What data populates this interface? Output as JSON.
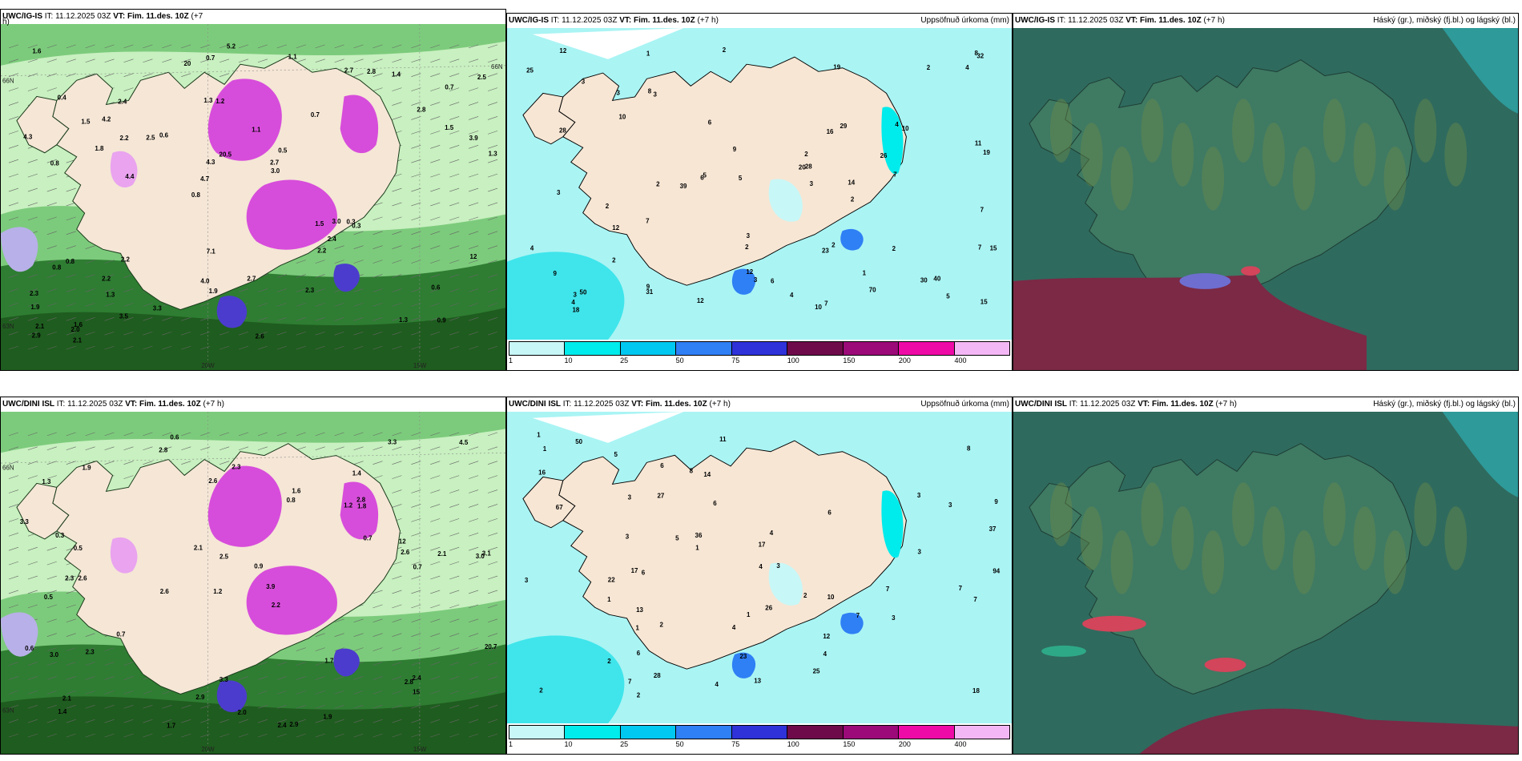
{
  "panels": {
    "igis_wind": {
      "model": "UWC/IG-IS",
      "it_label": "IT:",
      "it_value": "11.12.2025 03Z",
      "vt_label": "VT:",
      "vt_value": "Fim. 11.des. 10Z",
      "lead": "(+7",
      "lead_tail": "h)",
      "axis": {
        "lon_left": "20W",
        "lon_right": "15W",
        "lat_top": "66N",
        "lat_top_right": "66N",
        "lat_bottom": "63N"
      },
      "values": [
        "0.9",
        "0.8",
        "0.7",
        "0.8",
        "0.7",
        "1.6",
        "1.3",
        "1.1",
        "0.8",
        "0.6",
        "1.9",
        "1.3",
        "1.2",
        "0.5",
        "0.3",
        "0.4",
        "0.7",
        "1.3",
        "1.5",
        "1.5",
        "4.7",
        "4.0",
        "4.3",
        "2.4",
        "2.7",
        "2.2",
        "1.3",
        "0.6",
        "0.3",
        "2.6",
        "2.5",
        "1.8",
        "2.2",
        "3.5",
        "3.9",
        "2.7",
        "2.1",
        "1.9",
        "3.0",
        "0.8",
        "2.8",
        "2.5",
        "2.4",
        "2.3",
        "2.2",
        "2.1",
        "2.9",
        "2.7",
        "1.4",
        "5.2",
        "4.4",
        "4.3",
        "4.2",
        "2.8",
        "2.0",
        "1.1",
        "20",
        "20.5",
        "12",
        "7.1",
        "3.3",
        "3.0",
        "2.2",
        "2.3",
        "1.6",
        "1.5"
      ],
      "colors": {
        "sea_green_dark": "#1f5c1f",
        "sea_green": "#2e7d32",
        "sea_green_light": "#7ccb7c",
        "pale_green": "#c8f0c0",
        "land": "#f5e6d6",
        "magenta": "#d74ddb",
        "magenta_light": "#e9a3ef",
        "blue": "#4b3ccd",
        "lavender": "#b8b0e8"
      }
    },
    "igis_precip": {
      "model": "UWC/IG-IS",
      "it_label": "IT:",
      "it_value": "11.12.2025 03Z",
      "vt_label": "VT:",
      "vt_value": "Fim. 11.des. 10Z",
      "lead": "(+7 h)",
      "title_right": "Uppsöfnuð úrkoma (mm)",
      "values": [
        "12",
        "10",
        "9",
        "1",
        "1",
        "3",
        "2",
        "5",
        "2",
        "6",
        "2",
        "3",
        "5",
        "2",
        "19",
        "20",
        "28",
        "31",
        "39",
        "25",
        "23",
        "32",
        "2",
        "3",
        "10",
        "2",
        "4",
        "12",
        "12",
        "2",
        "5",
        "7",
        "3",
        "4",
        "2",
        "14",
        "7",
        "9",
        "29",
        "40",
        "28",
        "26",
        "15",
        "50",
        "3",
        "2",
        "7",
        "4",
        "3",
        "12",
        "8",
        "11",
        "15",
        "2",
        "7",
        "4",
        "6",
        "9",
        "8",
        "3",
        "30",
        "70",
        "10",
        "7",
        "6",
        "4",
        "3",
        "19",
        "18",
        "16"
      ]
    },
    "igis_cloud": {
      "model": "UWC/IG-IS",
      "it_label": "IT:",
      "it_value": "11.12.2025 03Z",
      "vt_label": "VT:",
      "vt_value": "Fim. 11.des. 10Z",
      "lead": "(+7 h)",
      "title_right": "Háský (gr.), miðský (fj.bl.) og lágský (bl.)"
    },
    "dini_wind": {
      "model": "UWC/DINI ISL",
      "it_label": "IT:",
      "it_value": "11.12.2025 03Z",
      "vt_label": "VT:",
      "vt_value": "Fim. 11.des. 10Z",
      "lead": "(+7 h)",
      "axis": {
        "lon_left": "20W",
        "lon_right": "15W",
        "lat_top": "66N",
        "lat_top_right": "",
        "lat_bottom": "63N"
      },
      "values": [
        "0.6",
        "1.4",
        "3.0",
        "1.2",
        "2.2",
        "2.6",
        "1.3",
        "1.2",
        "0.5",
        "0.8",
        "0.9",
        "1.4",
        "2.8",
        "2.6",
        "2.4",
        "2.9",
        "3.3",
        "3.3",
        "0.7",
        "0.7",
        "0.5",
        "2.3",
        "3.1",
        "2.1",
        "0.6",
        "0.3",
        "2.5",
        "2.6",
        "2.4",
        "3.0",
        "2.8",
        "1.6",
        "2.3",
        "2.1",
        "1.7",
        "20.7",
        "12",
        "2.9",
        "4.5",
        "2.3",
        "2.1",
        "1.7",
        "1.9",
        "1.9",
        "2.0",
        "1.8",
        "15",
        "2.8",
        "3.3",
        "3.9",
        "2.6",
        "0.7"
      ],
      "colors": {
        "sea_green_dark": "#1f5c1f",
        "sea_green": "#2e7d32",
        "sea_green_light": "#7ccb7c",
        "pale_green": "#c8f0c0",
        "land": "#f5e6d6",
        "magenta": "#d74ddb",
        "magenta_light": "#e9a3ef",
        "blue": "#4b3ccd",
        "lavender": "#b8b0e8"
      }
    },
    "dini_precip": {
      "model": "UWC/DINI ISL",
      "it_label": "IT:",
      "it_value": "11.12.2025 03Z",
      "vt_label": "VT:",
      "vt_value": "Fim. 11.des. 10Z",
      "lead": "(+7 h)",
      "title_right": "Uppsöfnuð úrkoma (mm)",
      "values": [
        "1",
        "1",
        "3",
        "8",
        "9",
        "12",
        "14",
        "2",
        "2",
        "7",
        "1",
        "3",
        "2",
        "1",
        "1",
        "5",
        "4",
        "2",
        "27",
        "36",
        "37",
        "23",
        "28",
        "17",
        "22",
        "26",
        "13",
        "3",
        "4",
        "8",
        "2",
        "6",
        "3",
        "7",
        "4",
        "3",
        "5",
        "1",
        "4",
        "6",
        "3",
        "13",
        "10",
        "6",
        "50",
        "4",
        "6",
        "3",
        "25",
        "67",
        "94",
        "6",
        "7",
        "7",
        "7",
        "16",
        "18",
        "17",
        "3",
        "11"
      ]
    },
    "dini_cloud": {
      "model": "UWC/DINI ISL",
      "it_label": "IT:",
      "it_value": "11.12.2025 03Z",
      "vt_label": "VT:",
      "vt_value": "Fim. 11.des. 10Z",
      "lead": "(+7 h)",
      "title_right": "Háský (gr.), miðský (fj.bl.) og lágský (bl.)"
    }
  },
  "precip_legend": {
    "ticks": [
      "1",
      "10",
      "25",
      "50",
      "75",
      "100",
      "150",
      "200",
      "400"
    ],
    "colors": [
      "#c8f7f7",
      "#00ebeb",
      "#00c8f0",
      "#2f7ff5",
      "#2e32d8",
      "#6e0a4a",
      "#9b0a78",
      "#ee0aa6",
      "#f4b7f5"
    ]
  },
  "map_colors": {
    "precip_land": "#f7e6d4",
    "precip_light": "#aaf4f4",
    "precip_mid": "#3fe5eb",
    "cloud_base": "#2f6a5e",
    "cloud_land": "#3f7a63",
    "cloud_red": "#7b2945",
    "cloud_pink": "#d2455a",
    "cloud_blue": "#6e6ed0",
    "cloud_cyan": "#2e9a9a"
  }
}
